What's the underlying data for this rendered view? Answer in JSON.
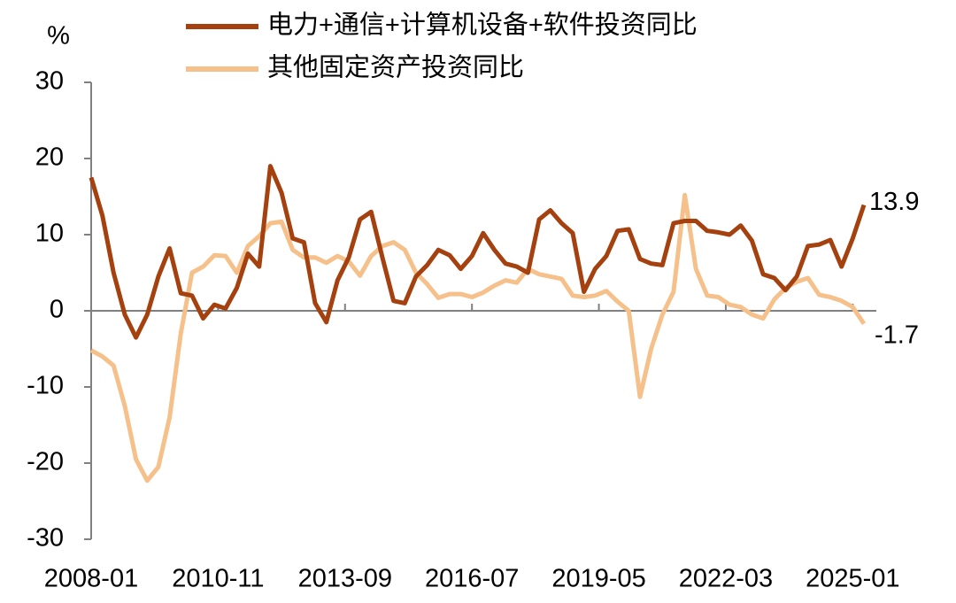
{
  "chart_data": {
    "type": "line",
    "y_label": "%",
    "x": [
      "2008-01",
      "2008-04",
      "2008-07",
      "2008-10",
      "2009-01",
      "2009-04",
      "2009-07",
      "2009-10",
      "2010-01",
      "2010-04",
      "2010-07",
      "2010-10",
      "2011-01",
      "2011-04",
      "2011-07",
      "2011-10",
      "2012-01",
      "2012-04",
      "2012-07",
      "2012-10",
      "2013-01",
      "2013-04",
      "2013-07",
      "2013-10",
      "2014-01",
      "2014-04",
      "2014-07",
      "2014-10",
      "2015-01",
      "2015-04",
      "2015-07",
      "2015-10",
      "2016-01",
      "2016-04",
      "2016-07",
      "2016-10",
      "2017-01",
      "2017-04",
      "2017-07",
      "2017-10",
      "2018-01",
      "2018-04",
      "2018-07",
      "2018-10",
      "2019-01",
      "2019-04",
      "2019-07",
      "2019-10",
      "2020-01",
      "2020-04",
      "2020-07",
      "2020-10",
      "2021-01",
      "2021-04",
      "2021-07",
      "2021-10",
      "2022-01",
      "2022-04",
      "2022-07",
      "2022-10",
      "2023-01",
      "2023-04",
      "2023-07",
      "2023-10",
      "2024-01",
      "2024-04",
      "2024-07",
      "2024-10",
      "2025-01",
      "2025-04"
    ],
    "series": [
      {
        "name": "电力+通信+计算机设备+软件投资同比",
        "color": "#a5400f",
        "values": [
          17.5,
          12.5,
          5,
          -0.5,
          -3.5,
          -0.5,
          4.5,
          8.2,
          2.3,
          2,
          -1,
          0.8,
          0.3,
          3,
          7.5,
          5.8,
          19,
          15.5,
          9.5,
          9,
          1,
          -1.5,
          4,
          7,
          12,
          13,
          7,
          1.3,
          1,
          4.5,
          6,
          8,
          7.3,
          5.5,
          7.2,
          10.2,
          8,
          6.2,
          5.8,
          5,
          12,
          13.2,
          11.5,
          10.2,
          2.5,
          5.5,
          7.2,
          10.5,
          10.7,
          6.8,
          6.2,
          6,
          11.5,
          11.8,
          11.8,
          10.5,
          10.3,
          10,
          11.2,
          9.2,
          4.8,
          4.3,
          2.7,
          4.5,
          8.5,
          8.7,
          9.3,
          5.8,
          9.5,
          13.9
        ]
      },
      {
        "name": "其他固定资产投资同比",
        "color": "#f6c08a",
        "values": [
          -5.2,
          -6,
          -7.2,
          -12.5,
          -19.5,
          -22.3,
          -20.5,
          -14,
          -3,
          5,
          5.8,
          7.3,
          7.2,
          5,
          8.5,
          9.8,
          11.5,
          11.7,
          8,
          7,
          7,
          6.3,
          7.2,
          6.5,
          4.6,
          7.2,
          8.5,
          9,
          8,
          5,
          3.5,
          1.7,
          2.2,
          2.2,
          1.8,
          2.4,
          3.3,
          4,
          3.7,
          5.5,
          4.8,
          4.5,
          4.2,
          2,
          1.8,
          2,
          2.6,
          1.2,
          0,
          -11.3,
          -5,
          -0.5,
          2.5,
          15.2,
          5.5,
          2,
          1.8,
          0.8,
          0.5,
          -0.5,
          -1,
          1.5,
          3,
          3.8,
          4.3,
          2.1,
          1.8,
          1.3,
          0.5,
          -1.7
        ]
      }
    ],
    "xticks": [
      "2008-01",
      "2010-11",
      "2013-09",
      "2016-07",
      "2019-05",
      "2022-03",
      "2025-01"
    ],
    "ylim": [
      -30,
      30
    ],
    "yticks": [
      -30,
      -20,
      -10,
      0,
      10,
      20,
      30
    ]
  }
}
